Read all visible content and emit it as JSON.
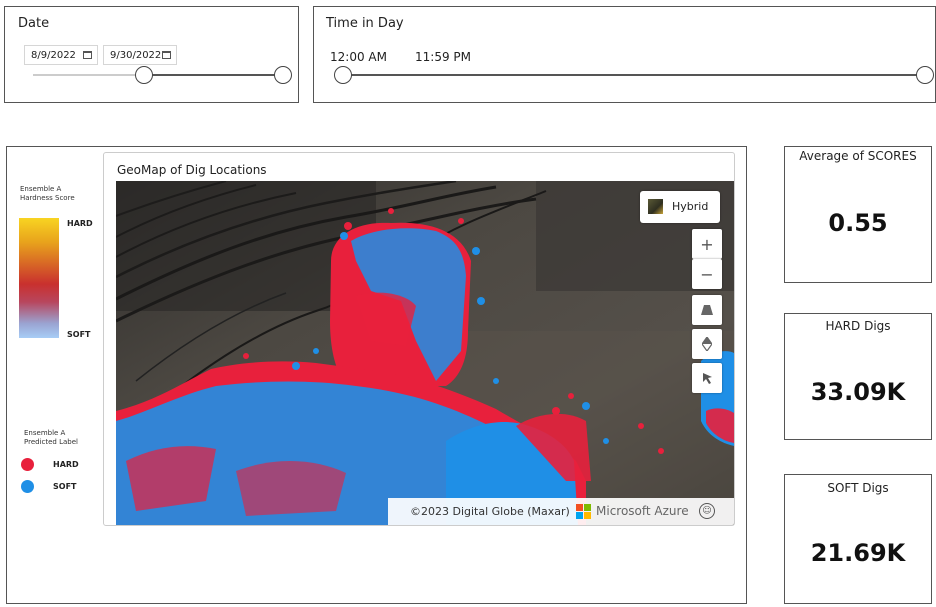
{
  "date_slicer": {
    "title": "Date",
    "start": "8/9/2022",
    "end": "9/30/2022"
  },
  "time_slicer": {
    "title": "Time in Day",
    "start": "12:00 AM",
    "end": "11:59 PM"
  },
  "map": {
    "title": "GeoMap of Dig Locations",
    "style_label": "Hybrid",
    "attribution": "©2023 Digital Globe (Maxar)",
    "provider": "Microsoft Azure",
    "zoom_in": "+",
    "zoom_out": "−"
  },
  "legend": {
    "score_title": "Ensemble A Hardness Score",
    "score_high": "HARD",
    "score_low": "SOFT",
    "label_title": "Ensemble A Predicted Label",
    "items": [
      {
        "label": "HARD",
        "color": "#e8203c"
      },
      {
        "label": "SOFT",
        "color": "#1f8fe6"
      }
    ]
  },
  "kpis": [
    {
      "title": "Average of SCORES",
      "value": "0.55"
    },
    {
      "title": "HARD Digs",
      "value": "33.09K"
    },
    {
      "title": "SOFT Digs",
      "value": "21.69K"
    }
  ]
}
